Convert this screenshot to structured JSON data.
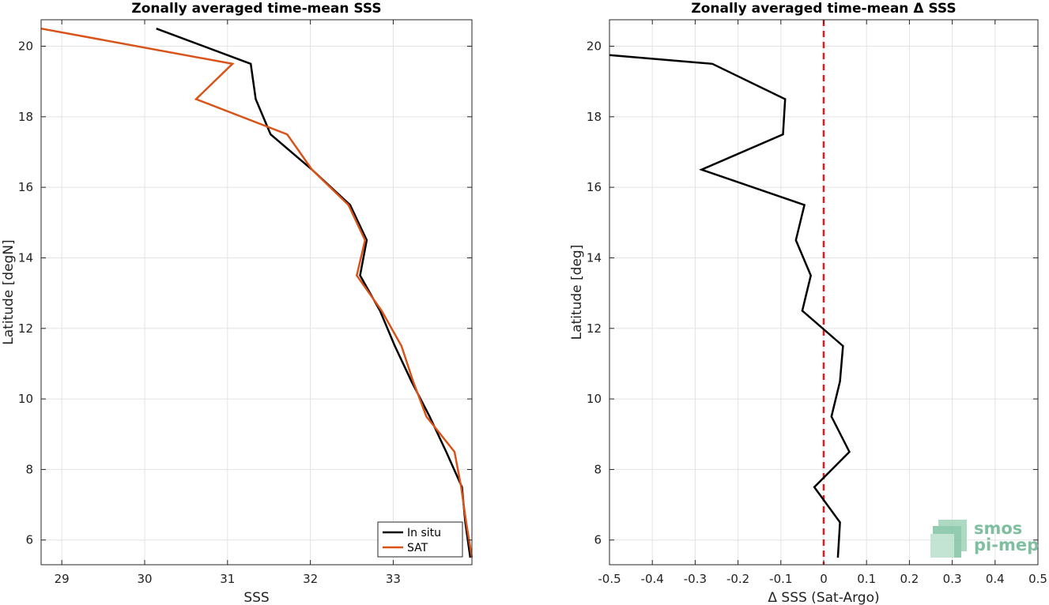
{
  "chart_data": [
    {
      "type": "line",
      "title": "Zonally averaged time-mean SSS",
      "xlabel": "SSS",
      "ylabel": "Latitude [degN]",
      "xlim": [
        28.75,
        33.95
      ],
      "ylim": [
        5.3,
        20.75
      ],
      "xticks": [
        29,
        30,
        31,
        32,
        33
      ],
      "yticks": [
        6,
        8,
        10,
        12,
        14,
        16,
        18,
        20
      ],
      "grid": true,
      "legend_position": "bottom-right",
      "series": [
        {
          "name": "In situ",
          "color": "#000000",
          "points": [
            [
              30.14,
              20.5
            ],
            [
              31.28,
              19.5
            ],
            [
              31.34,
              18.5
            ],
            [
              31.52,
              17.5
            ],
            [
              32.02,
              16.5
            ],
            [
              32.48,
              15.5
            ],
            [
              32.68,
              14.5
            ],
            [
              32.6,
              13.5
            ],
            [
              32.84,
              12.5
            ],
            [
              33.02,
              11.5
            ],
            [
              33.22,
              10.5
            ],
            [
              33.44,
              9.5
            ],
            [
              33.64,
              8.5
            ],
            [
              33.83,
              7.5
            ],
            [
              33.87,
              6.5
            ],
            [
              33.93,
              5.5
            ]
          ]
        },
        {
          "name": "SAT",
          "color": "#d95319",
          "points": [
            [
              28.75,
              20.5
            ],
            [
              31.06,
              19.5
            ],
            [
              30.62,
              18.5
            ],
            [
              31.72,
              17.5
            ],
            [
              32.02,
              16.5
            ],
            [
              32.46,
              15.5
            ],
            [
              32.66,
              14.5
            ],
            [
              32.56,
              13.5
            ],
            [
              32.86,
              12.5
            ],
            [
              33.1,
              11.5
            ],
            [
              33.24,
              10.5
            ],
            [
              33.4,
              9.5
            ],
            [
              33.74,
              8.5
            ],
            [
              33.82,
              7.5
            ],
            [
              33.88,
              6.5
            ],
            [
              33.95,
              5.5
            ]
          ]
        }
      ]
    },
    {
      "type": "line",
      "title": "Zonally averaged time-mean Δ SSS",
      "xlabel": "Δ SSS (Sat-Argo)",
      "ylabel": "Latitude [deg]",
      "xlim": [
        -0.5,
        0.5
      ],
      "ylim": [
        5.3,
        20.75
      ],
      "xticks": [
        -0.5,
        -0.4,
        -0.3,
        -0.2,
        -0.1,
        0,
        0.1,
        0.2,
        0.3,
        0.4,
        0.5
      ],
      "yticks": [
        6,
        8,
        10,
        12,
        14,
        16,
        18,
        20
      ],
      "grid": true,
      "reference_line": {
        "x": 0,
        "color": "#e8191b",
        "style": "dashed"
      },
      "series": [
        {
          "color": "#000000",
          "points": [
            [
              -0.5,
              19.75
            ],
            [
              -0.26,
              19.5
            ],
            [
              -0.09,
              18.5
            ],
            [
              -0.095,
              17.5
            ],
            [
              -0.285,
              16.5
            ],
            [
              -0.045,
              15.5
            ],
            [
              -0.065,
              14.5
            ],
            [
              -0.03,
              13.5
            ],
            [
              -0.05,
              12.5
            ],
            [
              0.045,
              11.5
            ],
            [
              0.038,
              10.5
            ],
            [
              0.018,
              9.5
            ],
            [
              0.06,
              8.5
            ],
            [
              -0.022,
              7.5
            ],
            [
              0.038,
              6.5
            ],
            [
              0.033,
              5.5
            ]
          ]
        }
      ]
    }
  ],
  "legend": {
    "items": [
      "In situ",
      "SAT"
    ]
  },
  "logo": {
    "line1": "smos",
    "line2": "pi-mep"
  }
}
